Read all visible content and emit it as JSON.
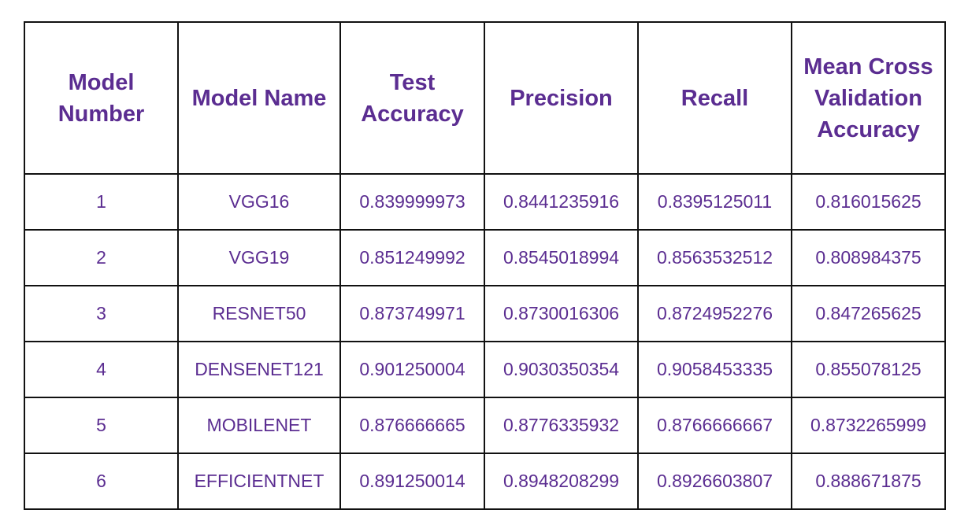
{
  "table": {
    "headers": [
      "Model Number",
      "Model Name",
      "Test Accuracy",
      "Precision",
      "Recall",
      "Mean Cross Validation Accuracy"
    ],
    "rows": [
      [
        "1",
        "VGG16",
        "0.839999973",
        "0.8441235916",
        "0.8395125011",
        "0.816015625"
      ],
      [
        "2",
        "VGG19",
        "0.851249992",
        "0.8545018994",
        "0.8563532512",
        "0.808984375"
      ],
      [
        "3",
        "RESNET50",
        "0.873749971",
        "0.8730016306",
        "0.8724952276",
        "0.847265625"
      ],
      [
        "4",
        "DENSENET121",
        "0.901250004",
        "0.9030350354",
        "0.9058453335",
        "0.855078125"
      ],
      [
        "5",
        "MOBILENET",
        "0.876666665",
        "0.8776335932",
        "0.8766666667",
        "0.8732265999"
      ],
      [
        "6",
        "EFFICIENTNET",
        "0.891250014",
        "0.8948208299",
        "0.8926603807",
        "0.888671875"
      ]
    ]
  },
  "colors": {
    "text": "#5b2d91",
    "border": "#111111",
    "background": "#ffffff"
  }
}
